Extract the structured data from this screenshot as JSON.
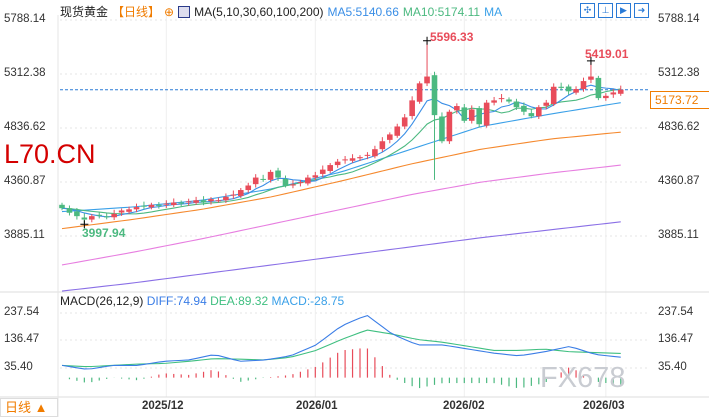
{
  "header": {
    "title": "现货黄金",
    "period": "【日线】",
    "indicator": "MA(5,10,30,60,100,200)",
    "ma5": "MA5:5140.66",
    "ma10": "MA10:5174.11",
    "ma_more": "MA"
  },
  "tools": [
    "crosshair-icon",
    "zoom-range-icon",
    "step-forward-icon",
    "exit-icon"
  ],
  "price_axis": [
    "5788.14",
    "5312.38",
    "4836.62",
    "4360.87",
    "3885.11"
  ],
  "last_price": "5173.72",
  "high_label": "5596.33",
  "low_label": "3997.94",
  "recent_high_label": "5419.01",
  "macd": {
    "title": "MACD(26,12,9)",
    "diff": "DIFF:74.94",
    "dea": "DEA:89.32",
    "macd": "MACD:-28.75",
    "axis": [
      "237.54",
      "136.47",
      "35.40"
    ]
  },
  "dates": [
    "2025/12",
    "2026/01",
    "2026/02",
    "2026/03"
  ],
  "period_button": "日线 ▲",
  "watermarks": [
    "L70.CN",
    "FX678"
  ],
  "colors": {
    "up": "#e84c5a",
    "down": "#4cb980",
    "ma5": "#3a8ee6",
    "ma10": "#4cb980",
    "ma30": "#3aa0e8",
    "ma60": "#f5892e",
    "ma100": "#e77ee0",
    "ma200": "#8a6fe6",
    "diff": "#3a7de6",
    "dea": "#3fbf80"
  },
  "chart_data": {
    "type": "candlestick",
    "closes": [
      4130,
      4090,
      4060,
      4030,
      4060,
      4070,
      4050,
      4080,
      4110,
      4120,
      4140,
      4150,
      4160,
      4150,
      4170,
      4180,
      4170,
      4190,
      4200,
      4180,
      4210,
      4200,
      4230,
      4250,
      4290,
      4330,
      4400,
      4380,
      4450,
      4400,
      4330,
      4340,
      4360,
      4400,
      4420,
      4470,
      4510,
      4540,
      4560,
      4570,
      4580,
      4600,
      4650,
      4720,
      4780,
      4850,
      4930,
      5080,
      5230,
      5290,
      4950,
      4720,
      4980,
      5030,
      4900,
      5000,
      4870,
      5060,
      5080,
      5100,
      5070,
      5020,
      4980,
      4940,
      5020,
      5060,
      5200,
      5190,
      5160,
      5180,
      5250,
      5290,
      5100,
      5120,
      5150,
      5174
    ],
    "high": {
      "index": 49,
      "value": 5596.33
    },
    "recent_high": {
      "index": 71,
      "value": 5419.01
    },
    "low": {
      "index": 3,
      "value": 3997.94
    },
    "ma30": [
      4100,
      4140,
      4200,
      4300,
      4450,
      4650,
      4850,
      4960,
      5060
    ],
    "ma60": [
      3950,
      4030,
      4120,
      4230,
      4370,
      4520,
      4650,
      4740,
      4800
    ],
    "ma100": [
      3630,
      3740,
      3860,
      3990,
      4120,
      4250,
      4360,
      4440,
      4510
    ],
    "ma200": [
      3400,
      3470,
      3550,
      3630,
      3710,
      3790,
      3870,
      3940,
      4010
    ],
    "diff": [
      45,
      30,
      45,
      45,
      60,
      65,
      85,
      60,
      65,
      80,
      120,
      190,
      230,
      160,
      120,
      120,
      105,
      90,
      80,
      95,
      115,
      85,
      75
    ],
    "dea": [
      45,
      40,
      45,
      50,
      52,
      60,
      70,
      68,
      65,
      75,
      100,
      140,
      175,
      160,
      140,
      130,
      115,
      100,
      100,
      105,
      95,
      92,
      89
    ],
    "date_index": [
      14,
      34,
      54,
      73
    ],
    "yrange": [
      3885.11,
      5788.14
    ],
    "macd_range": [
      35.4,
      237.54
    ]
  }
}
